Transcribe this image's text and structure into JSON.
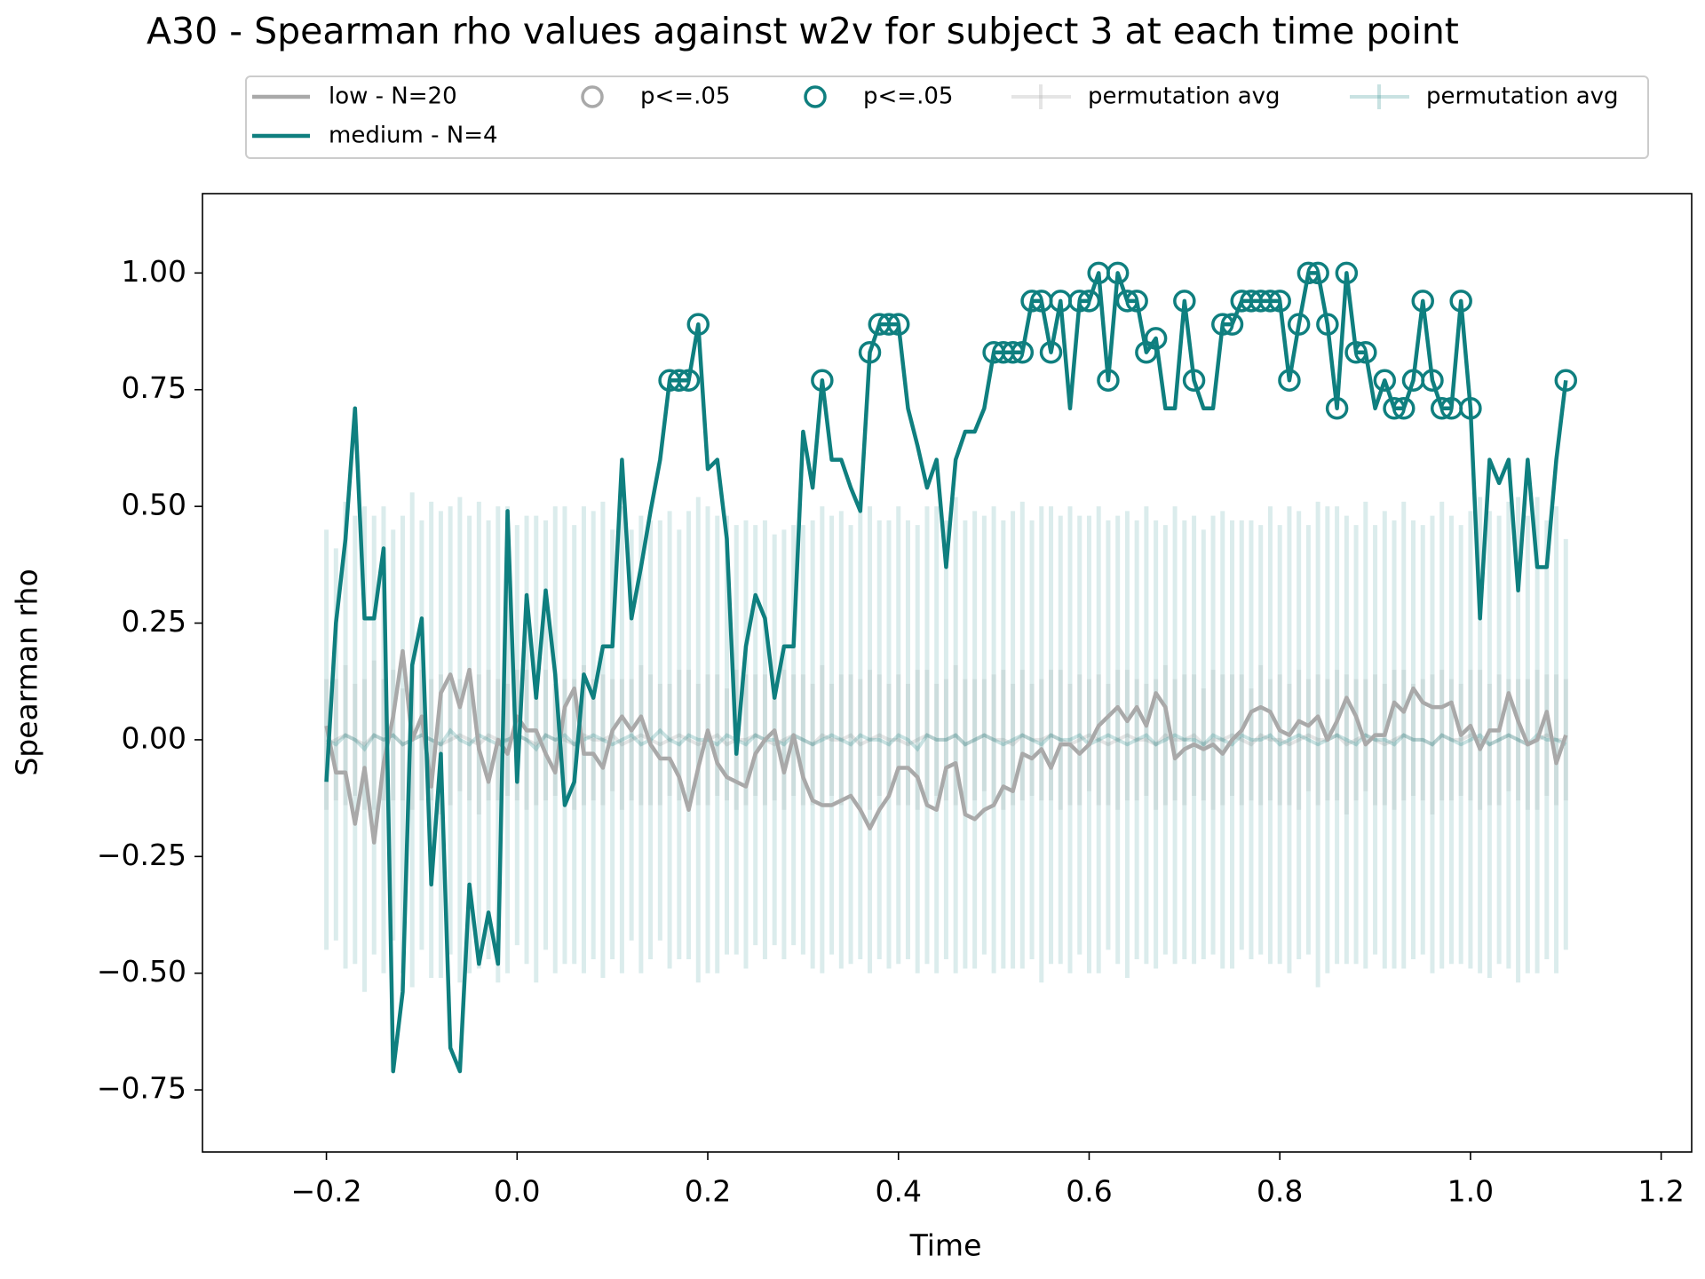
{
  "chart_data": {
    "type": "line",
    "title": "A30 - Spearman rho values against w2v for subject 3 at each time point",
    "xlabel": "Time",
    "ylabel": "Spearman rho",
    "x": [
      -0.2,
      -0.19,
      -0.18,
      -0.17,
      -0.16,
      -0.15,
      -0.14,
      -0.13,
      -0.12,
      -0.11,
      -0.1,
      -0.09,
      -0.08,
      -0.07,
      -0.06,
      -0.05,
      -0.04,
      -0.03,
      -0.02,
      -0.01,
      0,
      0.01,
      0.02,
      0.03,
      0.04,
      0.05,
      0.06,
      0.07,
      0.08,
      0.09,
      0.1,
      0.11,
      0.12,
      0.13,
      0.14,
      0.15,
      0.16,
      0.17,
      0.18,
      0.19,
      0.2,
      0.21,
      0.22,
      0.23,
      0.24,
      0.25,
      0.26,
      0.27,
      0.28,
      0.29,
      0.3,
      0.31,
      0.32,
      0.33,
      0.34,
      0.35,
      0.36,
      0.37,
      0.38,
      0.39,
      0.4,
      0.41,
      0.42,
      0.43,
      0.44,
      0.45,
      0.46,
      0.47,
      0.48,
      0.49,
      0.5,
      0.51,
      0.52,
      0.53,
      0.54,
      0.55,
      0.56,
      0.57,
      0.58,
      0.59,
      0.6,
      0.61,
      0.62,
      0.63,
      0.64,
      0.65,
      0.66,
      0.67,
      0.68,
      0.69,
      0.7,
      0.71,
      0.72,
      0.73,
      0.74,
      0.75,
      0.76,
      0.77,
      0.78,
      0.79,
      0.8,
      0.81,
      0.82,
      0.83,
      0.84,
      0.85,
      0.86,
      0.87,
      0.88,
      0.89,
      0.9,
      0.91,
      0.92,
      0.93,
      0.94,
      0.95,
      0.96,
      0.97,
      0.98,
      0.99,
      1,
      1.01,
      1.02,
      1.03,
      1.04,
      1.05,
      1.06,
      1.07,
      1.08,
      1.09,
      1.1
    ],
    "series": [
      {
        "name": "low - N=20",
        "kind": "line",
        "color": "#a9a9a9",
        "values": [
          0.03,
          -0.07,
          -0.07,
          -0.18,
          -0.06,
          -0.22,
          -0.05,
          0.05,
          0.19,
          0,
          0.05,
          -0.1,
          0.1,
          0.14,
          0.07,
          0.15,
          -0.02,
          -0.09,
          0,
          -0.03,
          0.05,
          0.02,
          0.02,
          -0.03,
          -0.07,
          0.07,
          0.11,
          -0.03,
          -0.03,
          -0.06,
          0.02,
          0.05,
          0.02,
          0.05,
          -0.01,
          -0.04,
          -0.04,
          -0.08,
          -0.15,
          -0.06,
          0.02,
          -0.05,
          -0.08,
          -0.09,
          -0.1,
          -0.03,
          0,
          0.02,
          -0.07,
          0.01,
          -0.08,
          -0.13,
          -0.14,
          -0.14,
          -0.13,
          -0.12,
          -0.15,
          -0.19,
          -0.15,
          -0.12,
          -0.06,
          -0.06,
          -0.08,
          -0.14,
          -0.15,
          -0.06,
          -0.05,
          -0.16,
          -0.17,
          -0.15,
          -0.14,
          -0.1,
          -0.11,
          -0.03,
          -0.04,
          -0.02,
          -0.06,
          -0.01,
          -0.01,
          -0.03,
          -0.01,
          0.03,
          0.05,
          0.07,
          0.04,
          0.07,
          0.03,
          0.1,
          0.07,
          -0.04,
          -0.02,
          -0.01,
          -0.02,
          -0.01,
          -0.03,
          0,
          0.02,
          0.06,
          0.07,
          0.06,
          0.02,
          0.01,
          0.04,
          0.03,
          0.05,
          0,
          0.04,
          0.09,
          0.05,
          -0.01,
          0.01,
          0.01,
          0.08,
          0.06,
          0.11,
          0.08,
          0.07,
          0.07,
          0.08,
          0.01,
          0.03,
          -0.02,
          0.02,
          0.02,
          0.1,
          0.04,
          -0.01,
          0,
          0.06,
          -0.05,
          0.01
        ]
      },
      {
        "name": "medium - N=4",
        "kind": "line",
        "color": "#0f7f7f",
        "values": [
          -0.09,
          0.25,
          0.43,
          0.71,
          0.26,
          0.26,
          0.41,
          -0.71,
          -0.54,
          0.16,
          0.26,
          -0.31,
          -0.03,
          -0.66,
          -0.71,
          -0.31,
          -0.48,
          -0.37,
          -0.48,
          0.49,
          -0.09,
          0.31,
          0.09,
          0.32,
          0.14,
          -0.14,
          -0.09,
          0.14,
          0.09,
          0.2,
          0.2,
          0.6,
          0.26,
          0.37,
          0.49,
          0.6,
          0.77,
          0.77,
          0.77,
          0.89,
          0.58,
          0.6,
          0.43,
          -0.03,
          0.2,
          0.31,
          0.26,
          0.09,
          0.2,
          0.2,
          0.66,
          0.54,
          0.77,
          0.6,
          0.6,
          0.54,
          0.49,
          0.83,
          0.89,
          0.89,
          0.89,
          0.71,
          0.63,
          0.54,
          0.6,
          0.37,
          0.6,
          0.66,
          0.66,
          0.71,
          0.83,
          0.83,
          0.83,
          0.83,
          0.94,
          0.94,
          0.83,
          0.94,
          0.71,
          0.94,
          0.94,
          1,
          0.77,
          1,
          0.94,
          0.94,
          0.83,
          0.86,
          0.71,
          0.71,
          0.94,
          0.77,
          0.71,
          0.71,
          0.89,
          0.89,
          0.94,
          0.94,
          0.94,
          0.94,
          0.94,
          0.77,
          0.89,
          1,
          1,
          0.89,
          0.71,
          1,
          0.83,
          0.83,
          0.71,
          0.77,
          0.71,
          0.71,
          0.77,
          0.94,
          0.77,
          0.71,
          0.71,
          0.94,
          0.71,
          0.26,
          0.6,
          0.55,
          0.6,
          0.32,
          0.6,
          0.37,
          0.37,
          0.6,
          0.77
        ]
      },
      {
        "name": "p<=.05",
        "kind": "scatter",
        "color": "#a9a9a9",
        "x": [],
        "values": []
      },
      {
        "name": "p<=.05",
        "kind": "scatter",
        "color": "#0f7f7f",
        "x": [
          0.16,
          0.17,
          0.18,
          0.19,
          0.32,
          0.37,
          0.38,
          0.39,
          0.4,
          0.5,
          0.51,
          0.52,
          0.53,
          0.54,
          0.55,
          0.56,
          0.57,
          0.59,
          0.6,
          0.61,
          0.62,
          0.63,
          0.64,
          0.65,
          0.66,
          0.67,
          0.7,
          0.71,
          0.74,
          0.75,
          0.76,
          0.77,
          0.78,
          0.79,
          0.8,
          0.81,
          0.82,
          0.83,
          0.84,
          0.85,
          0.86,
          0.87,
          0.88,
          0.89,
          0.91,
          0.92,
          0.93,
          0.94,
          0.95,
          0.96,
          0.97,
          0.98,
          0.99,
          1,
          1.1
        ],
        "values": [
          0.77,
          0.77,
          0.77,
          0.89,
          0.77,
          0.83,
          0.89,
          0.89,
          0.89,
          0.83,
          0.83,
          0.83,
          0.83,
          0.94,
          0.94,
          0.83,
          0.94,
          0.94,
          0.94,
          1,
          0.77,
          1,
          0.94,
          0.94,
          0.83,
          0.86,
          0.94,
          0.77,
          0.89,
          0.89,
          0.94,
          0.94,
          0.94,
          0.94,
          0.94,
          0.77,
          0.89,
          1,
          1,
          0.89,
          0.71,
          1,
          0.83,
          0.83,
          0.77,
          0.71,
          0.71,
          0.77,
          0.94,
          0.77,
          0.71,
          0.71,
          0.94,
          0.71,
          0.77
        ]
      },
      {
        "name": "permutation avg",
        "kind": "errorbar",
        "color": "#a9a9a9",
        "opacity": 0.2,
        "values": [
          -0.01,
          0,
          0.01,
          0,
          -0.01,
          0.01,
          0,
          0.01,
          -0.01,
          0,
          0.01,
          0,
          -0.01,
          0,
          0.01,
          0,
          -0.01,
          0.01,
          0,
          0,
          0.01,
          0,
          -0.01,
          0.01,
          0,
          0,
          -0.01,
          0.01,
          0,
          0,
          0.01,
          -0.01,
          0,
          0.01,
          0,
          -0.01,
          0,
          0.01,
          0,
          -0.01,
          0,
          0.01,
          -0.01,
          0,
          0,
          0.01,
          0,
          -0.01,
          0,
          0.01,
          0,
          -0.01,
          0.01,
          0,
          0,
          0.01,
          -0.01,
          0,
          0.01,
          0,
          0,
          -0.01,
          0,
          0.01,
          0,
          0,
          0.01,
          -0.01,
          0,
          0.01,
          0,
          0,
          -0.01,
          0.01,
          0,
          0,
          0.01,
          0,
          -0.01,
          0,
          0.01,
          0,
          -0.01,
          0,
          0.01,
          0,
          0,
          -0.01,
          0.01,
          0,
          0,
          0.01,
          -0.01,
          0,
          0,
          0.01,
          0,
          -0.01,
          0.01,
          0,
          0,
          -0.01,
          0,
          0.01,
          0,
          0,
          0.01,
          -0.01,
          0,
          0.01,
          0,
          -0.01,
          0,
          0.01,
          0,
          0,
          -0.01,
          0.01,
          0,
          0,
          0.01,
          0,
          -0.01,
          0,
          0.01,
          0,
          -0.01,
          0,
          0.01,
          0,
          0
        ],
        "errors": [
          0.14,
          0.13,
          0.15,
          0.12,
          0.14,
          0.16,
          0.13,
          0.14,
          0.12,
          0.15,
          0.14,
          0.13,
          0.15,
          0.14,
          0.12,
          0.13,
          0.15,
          0.14,
          0.13,
          0.12,
          0.14,
          0.15,
          0.13,
          0.14,
          0.12,
          0.13,
          0.14,
          0.15,
          0.13,
          0.14,
          0.12,
          0.14,
          0.13,
          0.15,
          0.14,
          0.13,
          0.12,
          0.14,
          0.15,
          0.13,
          0.14,
          0.13,
          0.12,
          0.15,
          0.14,
          0.13,
          0.14,
          0.12,
          0.15,
          0.13,
          0.14,
          0.13,
          0.15,
          0.12,
          0.14,
          0.13,
          0.14,
          0.15,
          0.13,
          0.12,
          0.14,
          0.13,
          0.15,
          0.14,
          0.12,
          0.13,
          0.15,
          0.14,
          0.13,
          0.12,
          0.14,
          0.15,
          0.13,
          0.14,
          0.12,
          0.13,
          0.14,
          0.15,
          0.13,
          0.14,
          0.12,
          0.14,
          0.13,
          0.15,
          0.14,
          0.13,
          0.12,
          0.14,
          0.15,
          0.13,
          0.14,
          0.13,
          0.12,
          0.15,
          0.14,
          0.13,
          0.14,
          0.12,
          0.15,
          0.13,
          0.14,
          0.13,
          0.15,
          0.12,
          0.14,
          0.13,
          0.14,
          0.15,
          0.13,
          0.12,
          0.14,
          0.13,
          0.15,
          0.14,
          0.12,
          0.13,
          0.15,
          0.14,
          0.13,
          0.12,
          0.14,
          0.15,
          0.13,
          0.14,
          0.12,
          0.13,
          0.14,
          0.15,
          0.13,
          0.14,
          0.13
        ]
      },
      {
        "name": "permutation avg",
        "kind": "errorbar",
        "color": "#0f7f7f",
        "opacity": 0.15,
        "values": [
          0,
          -0.01,
          0.01,
          0,
          -0.02,
          0.01,
          0,
          0.01,
          -0.01,
          0,
          0.01,
          0,
          -0.01,
          0.02,
          0,
          -0.01,
          0.01,
          0,
          -0.01,
          0,
          0.01,
          0,
          -0.02,
          0.01,
          0,
          0.01,
          -0.01,
          0,
          0.01,
          0,
          -0.01,
          0,
          0.01,
          -0.01,
          0,
          0.02,
          0,
          -0.01,
          0.01,
          0,
          0,
          -0.01,
          0.01,
          0,
          -0.01,
          0.01,
          0,
          0,
          -0.01,
          0.01,
          0,
          -0.01,
          0,
          0.01,
          0,
          -0.01,
          0.01,
          0,
          0,
          -0.01,
          0.01,
          0,
          -0.02,
          0.01,
          0,
          0,
          0.01,
          -0.01,
          0,
          0.01,
          0,
          -0.01,
          0,
          0.01,
          0,
          -0.01,
          0.01,
          0,
          0,
          0.01,
          -0.01,
          0,
          0.01,
          0,
          -0.01,
          0,
          0.01,
          -0.01,
          0,
          0.01,
          0,
          0,
          -0.01,
          0.01,
          0,
          -0.01,
          0.01,
          0,
          0,
          0.01,
          -0.01,
          0,
          0.01,
          0,
          -0.01,
          0,
          0.01,
          0,
          -0.01,
          0.01,
          0,
          0,
          -0.01,
          0.01,
          0,
          0,
          -0.01,
          0.01,
          0,
          -0.01,
          0,
          0.01,
          -0.01,
          0,
          0.01,
          0,
          -0.01,
          0.01,
          0,
          0,
          -0.01
        ],
        "errors": [
          0.45,
          0.42,
          0.5,
          0.48,
          0.52,
          0.47,
          0.5,
          0.44,
          0.49,
          0.53,
          0.46,
          0.51,
          0.5,
          0.48,
          0.52,
          0.49,
          0.5,
          0.47,
          0.51,
          0.5,
          0.45,
          0.48,
          0.5,
          0.46,
          0.5,
          0.49,
          0.47,
          0.5,
          0.48,
          0.51,
          0.46,
          0.5,
          0.44,
          0.49,
          0.47,
          0.45,
          0.49,
          0.46,
          0.48,
          0.52,
          0.5,
          0.49,
          0.47,
          0.46,
          0.48,
          0.45,
          0.47,
          0.44,
          0.46,
          0.45,
          0.46,
          0.48,
          0.5,
          0.47,
          0.49,
          0.47,
          0.48,
          0.5,
          0.47,
          0.48,
          0.49,
          0.47,
          0.48,
          0.49,
          0.5,
          0.47,
          0.51,
          0.48,
          0.49,
          0.47,
          0.5,
          0.48,
          0.49,
          0.5,
          0.47,
          0.51,
          0.49,
          0.48,
          0.5,
          0.47,
          0.49,
          0.5,
          0.46,
          0.48,
          0.5,
          0.47,
          0.49,
          0.48,
          0.46,
          0.49,
          0.47,
          0.48,
          0.46,
          0.47,
          0.49,
          0.48,
          0.46,
          0.47,
          0.46,
          0.49,
          0.47,
          0.5,
          0.48,
          0.46,
          0.52,
          0.5,
          0.49,
          0.48,
          0.47,
          0.5,
          0.46,
          0.49,
          0.48,
          0.5,
          0.47,
          0.46,
          0.49,
          0.5,
          0.48,
          0.47,
          0.49,
          0.51,
          0.5,
          0.48,
          0.5,
          0.52,
          0.49,
          0.51,
          0.47,
          0.5,
          0.44
        ]
      }
    ],
    "xlim": [
      -0.33,
      1.232
    ],
    "ylim": [
      -0.883,
      1.17
    ],
    "xticks": [
      {
        "value": -0.2,
        "label": "−0.2"
      },
      {
        "value": 0,
        "label": "0.0"
      },
      {
        "value": 0.2,
        "label": "0.2"
      },
      {
        "value": 0.4,
        "label": "0.4"
      },
      {
        "value": 0.6,
        "label": "0.6"
      },
      {
        "value": 0.8,
        "label": "0.8"
      },
      {
        "value": 1,
        "label": "1.0"
      },
      {
        "value": 1.2,
        "label": "1.2"
      }
    ],
    "yticks": [
      {
        "value": -0.75,
        "label": "−0.75"
      },
      {
        "value": -0.5,
        "label": "−0.50"
      },
      {
        "value": -0.25,
        "label": "−0.25"
      },
      {
        "value": 0,
        "label": "0.00"
      },
      {
        "value": 0.25,
        "label": "0.25"
      },
      {
        "value": 0.5,
        "label": "0.50"
      },
      {
        "value": 0.75,
        "label": "0.75"
      },
      {
        "value": 1,
        "label": "1.00"
      }
    ],
    "grid": false,
    "legend": "upper center"
  }
}
